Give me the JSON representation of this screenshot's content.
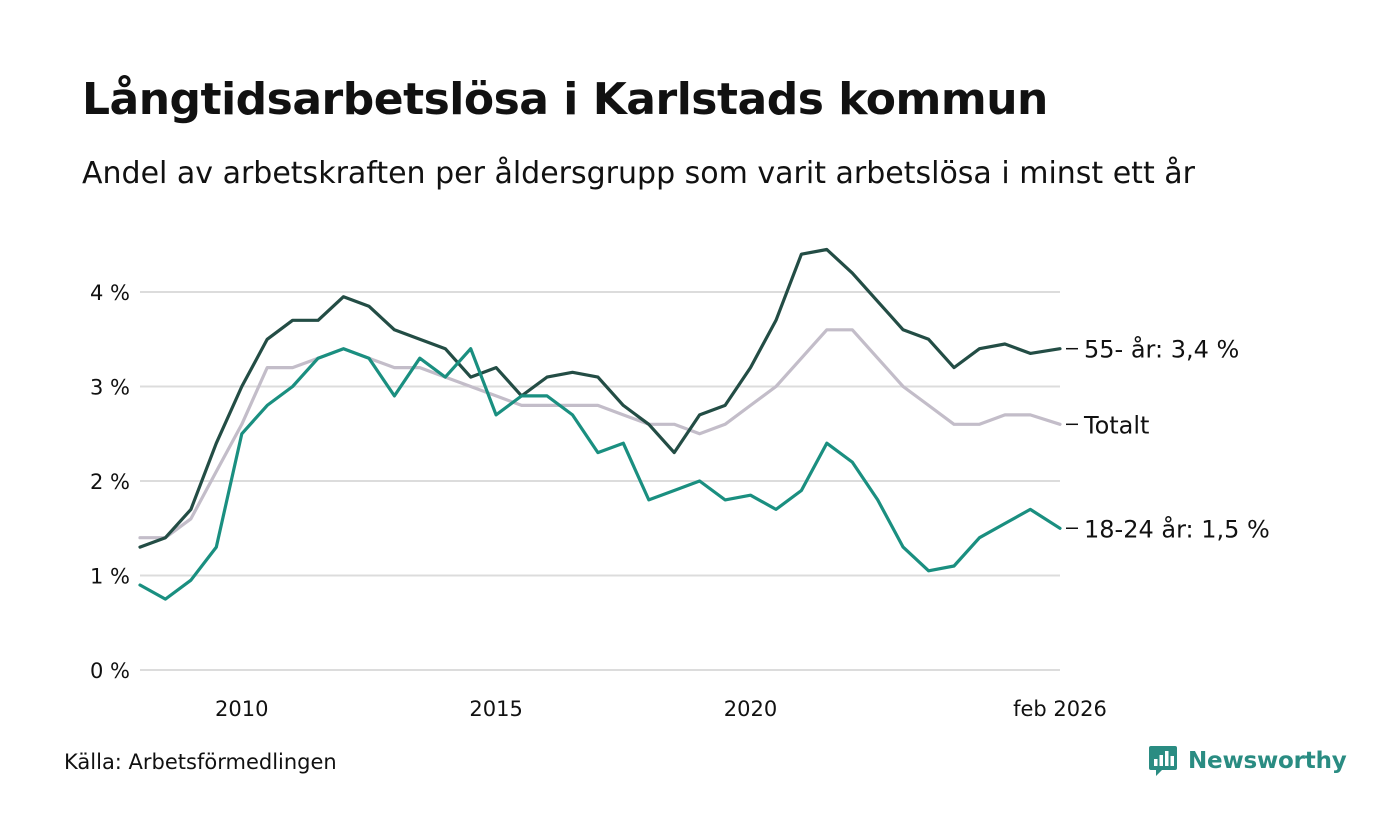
{
  "header": {
    "title": "Långtidsarbetslösa i Karlstads kommun",
    "subtitle": "Andel av arbetskraften per åldersgrupp som varit arbetslösa i minst ett år"
  },
  "footer": {
    "source": "Källa: Arbetsförmedlingen",
    "brand": "Newsworthy"
  },
  "colors": {
    "series_55": "#234d45",
    "series_total": "#c3bdc9",
    "series_18_24": "#1a8f80",
    "grid": "#dcdcdc",
    "brand": "#2a8c82"
  },
  "chart_data": {
    "type": "line",
    "title": "Långtidsarbetslösa i Karlstads kommun",
    "xlabel": "",
    "ylabel": "",
    "xlim": [
      2008.0,
      2026.083
    ],
    "ylim": [
      0,
      4.5
    ],
    "grid": true,
    "y_ticks": [
      {
        "value": 0,
        "label": "0 %"
      },
      {
        "value": 1,
        "label": "1 %"
      },
      {
        "value": 2,
        "label": "2 %"
      },
      {
        "value": 3,
        "label": "3 %"
      },
      {
        "value": 4,
        "label": "4 %"
      }
    ],
    "x_ticks": [
      {
        "value": 2010,
        "label": "2010"
      },
      {
        "value": 2015,
        "label": "2015"
      },
      {
        "value": 2020,
        "label": "2020"
      },
      {
        "value": 2026.083,
        "label": "feb 2026"
      }
    ],
    "series": [
      {
        "name": "Totalt",
        "end_label": "Totalt",
        "color_key": "series_total",
        "x": [
          2008.0,
          2008.5,
          2009.0,
          2009.5,
          2010.0,
          2010.5,
          2011.0,
          2011.5,
          2012.0,
          2012.5,
          2013.0,
          2013.5,
          2014.0,
          2014.5,
          2015.0,
          2015.5,
          2016.0,
          2016.5,
          2017.0,
          2017.5,
          2018.0,
          2018.5,
          2019.0,
          2019.5,
          2020.0,
          2020.5,
          2021.0,
          2021.5,
          2022.0,
          2022.5,
          2023.0,
          2023.5,
          2024.0,
          2024.5,
          2025.0,
          2025.5,
          2026.083
        ],
        "y": [
          1.4,
          1.4,
          1.6,
          2.1,
          2.6,
          3.2,
          3.2,
          3.3,
          3.4,
          3.3,
          3.2,
          3.2,
          3.1,
          3.0,
          2.9,
          2.8,
          2.8,
          2.8,
          2.8,
          2.7,
          2.6,
          2.6,
          2.5,
          2.6,
          2.8,
          3.0,
          3.3,
          3.6,
          3.6,
          3.3,
          3.0,
          2.8,
          2.6,
          2.6,
          2.7,
          2.7,
          2.6
        ]
      },
      {
        "name": "55- år",
        "end_label": "55- år: 3,4 %",
        "color_key": "series_55",
        "x": [
          2008.0,
          2008.5,
          2009.0,
          2009.5,
          2010.0,
          2010.5,
          2011.0,
          2011.5,
          2012.0,
          2012.5,
          2013.0,
          2013.5,
          2014.0,
          2014.5,
          2015.0,
          2015.5,
          2016.0,
          2016.5,
          2017.0,
          2017.5,
          2018.0,
          2018.5,
          2019.0,
          2019.5,
          2020.0,
          2020.5,
          2021.0,
          2021.5,
          2022.0,
          2022.5,
          2023.0,
          2023.5,
          2024.0,
          2024.5,
          2025.0,
          2025.5,
          2026.083
        ],
        "y": [
          1.3,
          1.4,
          1.7,
          2.4,
          3.0,
          3.5,
          3.7,
          3.7,
          3.95,
          3.85,
          3.6,
          3.5,
          3.4,
          3.1,
          3.2,
          2.9,
          3.1,
          3.15,
          3.1,
          2.8,
          2.6,
          2.3,
          2.7,
          2.8,
          3.2,
          3.7,
          4.4,
          4.45,
          4.2,
          3.9,
          3.6,
          3.5,
          3.2,
          3.4,
          3.45,
          3.35,
          3.4
        ]
      },
      {
        "name": "18-24 år",
        "end_label": "18-24 år: 1,5 %",
        "color_key": "series_18_24",
        "x": [
          2008.0,
          2008.5,
          2009.0,
          2009.5,
          2010.0,
          2010.5,
          2011.0,
          2011.5,
          2012.0,
          2012.5,
          2013.0,
          2013.5,
          2014.0,
          2014.5,
          2015.0,
          2015.5,
          2016.0,
          2016.5,
          2017.0,
          2017.5,
          2018.0,
          2018.5,
          2019.0,
          2019.5,
          2020.0,
          2020.5,
          2021.0,
          2021.5,
          2022.0,
          2022.5,
          2023.0,
          2023.5,
          2024.0,
          2024.5,
          2025.0,
          2025.5,
          2026.083
        ],
        "y": [
          0.9,
          0.75,
          0.95,
          1.3,
          2.5,
          2.8,
          3.0,
          3.3,
          3.4,
          3.3,
          2.9,
          3.3,
          3.1,
          3.4,
          2.7,
          2.9,
          2.9,
          2.7,
          2.3,
          2.4,
          1.8,
          1.9,
          2.0,
          1.8,
          1.85,
          1.7,
          1.9,
          2.4,
          2.2,
          1.8,
          1.3,
          1.05,
          1.1,
          1.4,
          1.55,
          1.7,
          1.5
        ]
      }
    ]
  }
}
